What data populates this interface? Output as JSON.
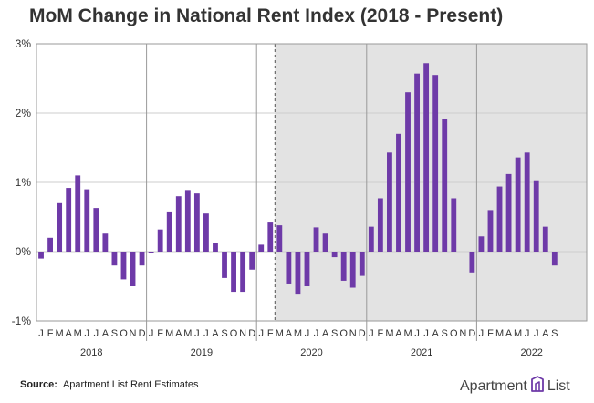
{
  "header": {
    "title": "MoM Change in National Rent Index (2018 - Present)"
  },
  "footer": {
    "source_label": "Source:",
    "source_text": "Apartment List Rent Estimates",
    "brand_left": "Apartment",
    "brand_right": "List"
  },
  "colors": {
    "bar": "#6e3aa8",
    "shade": "#e3e3e3",
    "grid": "#cccccc",
    "divider": "#999999",
    "text": "#333333"
  },
  "chart_data": {
    "type": "bar",
    "title": "MoM Change in National Rent Index (2018 - Present)",
    "xlabel": "",
    "ylabel": "",
    "ylim": [
      -1,
      3
    ],
    "yticks": [
      -1,
      0,
      1,
      2,
      3
    ],
    "ytick_labels": [
      "-1%",
      "0%",
      "1%",
      "2%",
      "3%"
    ],
    "grid": true,
    "shaded_region_start_index": 26,
    "dashed_line_after_index": 25,
    "months": [
      "J",
      "F",
      "M",
      "A",
      "M",
      "J",
      "J",
      "A",
      "S",
      "O",
      "N",
      "D"
    ],
    "years": [
      {
        "label": "2018",
        "values": [
          -0.1,
          0.2,
          0.7,
          0.92,
          1.1,
          0.9,
          0.63,
          0.26,
          -0.2,
          -0.4,
          -0.5,
          -0.2
        ]
      },
      {
        "label": "2019",
        "values": [
          -0.02,
          0.32,
          0.58,
          0.8,
          0.89,
          0.84,
          0.55,
          0.12,
          -0.38,
          -0.58,
          -0.58,
          -0.26
        ]
      },
      {
        "label": "2020",
        "values": [
          0.1,
          0.42,
          0.38,
          -0.46,
          -0.62,
          -0.5,
          0.35,
          0.26,
          -0.08,
          -0.42,
          -0.52,
          -0.35
        ]
      },
      {
        "label": "2021",
        "values": [
          0.36,
          0.77,
          1.43,
          1.7,
          2.3,
          2.57,
          2.72,
          2.55,
          1.92,
          0.77,
          0.0,
          -0.3
        ]
      },
      {
        "label": "2022",
        "values": [
          0.22,
          0.6,
          0.94,
          1.12,
          1.36,
          1.43,
          1.03,
          0.36,
          -0.2
        ]
      }
    ]
  }
}
